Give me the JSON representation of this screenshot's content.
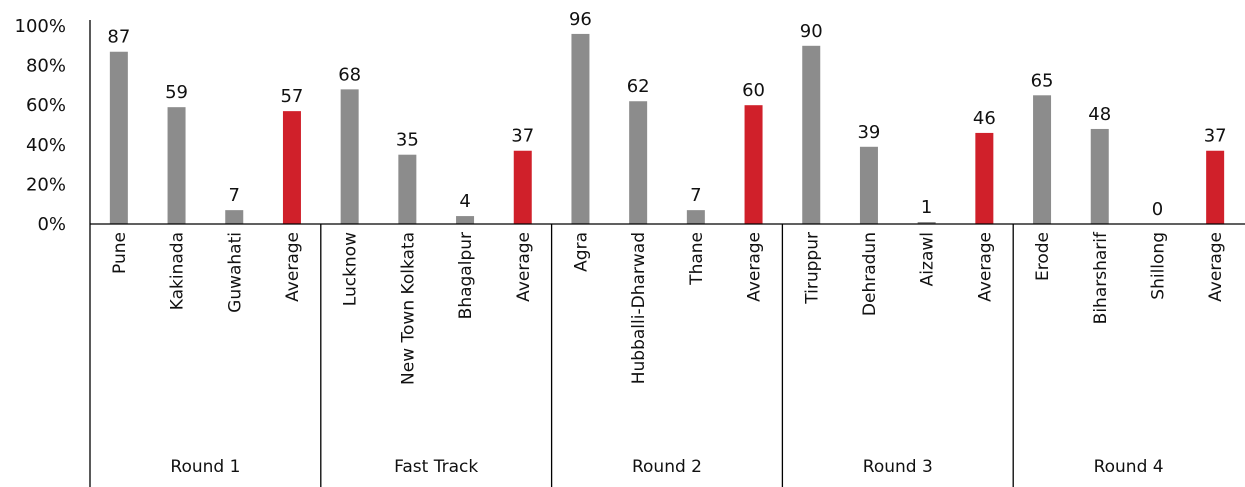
{
  "chart_data": {
    "type": "bar",
    "ylim": [
      0,
      100
    ],
    "yticks": [
      0,
      20,
      40,
      60,
      80,
      100
    ],
    "ytick_labels": [
      "0%",
      "20%",
      "40%",
      "60%",
      "80%",
      "100%"
    ],
    "grid": false,
    "legend": "none",
    "colors": {
      "city": "#8c8c8c",
      "average": "#d0202a"
    },
    "groups": [
      {
        "name": "Round 1",
        "categories": [
          "Pune",
          "Kakinada",
          "Guwahati",
          "Average"
        ],
        "values": [
          87,
          59,
          7,
          57
        ]
      },
      {
        "name": "Fast Track",
        "categories": [
          "Lucknow",
          "New Town Kolkata",
          "Bhagalpur",
          "Average"
        ],
        "values": [
          68,
          35,
          4,
          37
        ]
      },
      {
        "name": "Round 2",
        "categories": [
          "Agra",
          "Hubballi-Dharwad",
          "Thane",
          "Average"
        ],
        "values": [
          96,
          62,
          7,
          60
        ]
      },
      {
        "name": "Round 3",
        "categories": [
          "Tiruppur",
          "Dehradun",
          "Aizawl",
          "Average"
        ],
        "values": [
          90,
          39,
          1,
          46
        ]
      },
      {
        "name": "Round 4",
        "categories": [
          "Erode",
          "Biharsharif",
          "Shillong",
          "Average"
        ],
        "values": [
          65,
          48,
          0,
          37
        ]
      }
    ]
  }
}
